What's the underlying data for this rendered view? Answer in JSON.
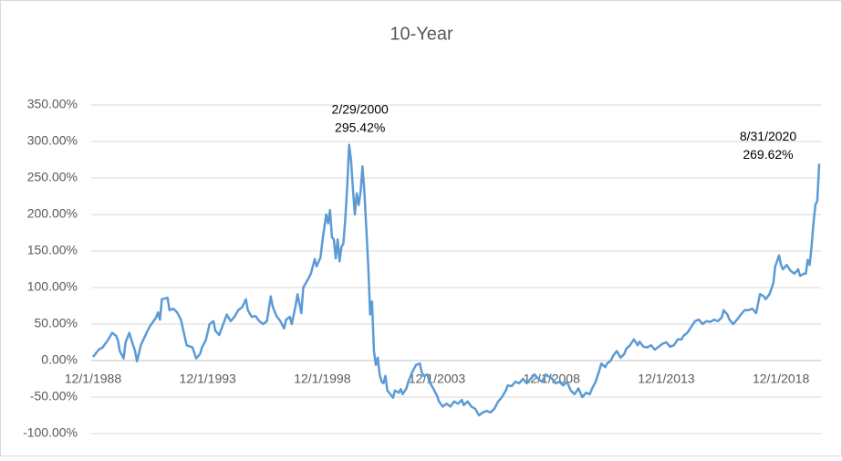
{
  "chart_data": {
    "type": "line",
    "title": "10-Year",
    "color": "#5b9bd5",
    "grid": true,
    "xlim": [
      "12/1/1988",
      "8/31/2020"
    ],
    "xticks": [
      "12/1/1988",
      "12/1/1993",
      "12/1/1998",
      "12/1/2003",
      "12/1/2008",
      "12/1/2013",
      "12/1/2018"
    ],
    "ylim": [
      -100,
      350
    ],
    "yticks": [
      {
        "value": -100,
        "label": "-100.00%"
      },
      {
        "value": -50,
        "label": "-50.00%"
      },
      {
        "value": 0,
        "label": "0.00%"
      },
      {
        "value": 50,
        "label": "50.00%"
      },
      {
        "value": 100,
        "label": "100.00%"
      },
      {
        "value": 150,
        "label": "150.00%"
      },
      {
        "value": 200,
        "label": "200.00%"
      },
      {
        "value": 250,
        "label": "250.00%"
      },
      {
        "value": 300,
        "label": "300.00%"
      },
      {
        "value": 350,
        "label": "350.00%"
      }
    ],
    "annotations": [
      {
        "x": "2/29/2000",
        "value": 295.42,
        "label": "295.42%"
      },
      {
        "x": "8/31/2020",
        "value": 269.62,
        "label": "269.62%"
      }
    ],
    "x": [
      "12/1/1988",
      "3/1/1989",
      "5/1/1989",
      "8/1/1989",
      "10/1/1989",
      "12/1/1989",
      "1/1/1990",
      "2/1/1990",
      "4/1/1990",
      "5/1/1990",
      "7/1/1990",
      "8/1/1990",
      "10/1/1990",
      "11/1/1990",
      "1/1/1991",
      "4/1/1991",
      "6/1/1991",
      "9/1/1991",
      "10/1/1991",
      "11/1/1991",
      "12/1/1991",
      "3/1/1992",
      "4/1/1992",
      "6/1/1992",
      "8/1/1992",
      "10/1/1992",
      "11/1/1992",
      "1/1/1993",
      "4/1/1993",
      "6/1/1993",
      "8/1/1993",
      "9/1/1993",
      "11/1/1993",
      "1/1/1994",
      "3/1/1994",
      "4/1/1994",
      "6/1/1994",
      "8/1/1994",
      "10/1/1994",
      "12/1/1994",
      "2/1/1995",
      "4/1/1995",
      "6/1/1995",
      "8/1/1995",
      "9/1/1995",
      "11/1/1995",
      "1/1/1996",
      "3/1/1996",
      "5/1/1996",
      "7/1/1996",
      "9/1/1996",
      "10/1/1996",
      "12/1/1996",
      "2/1/1997",
      "4/1/1997",
      "5/1/1997",
      "7/1/1997",
      "8/1/1997",
      "10/1/1997",
      "11/1/1997",
      "1/1/1998",
      "2/1/1998",
      "4/1/1998",
      "6/1/1998",
      "8/1/1998",
      "9/1/1998",
      "11/1/1998",
      "12/1/1998",
      "2/1/1999",
      "3/1/1999",
      "4/1/1999",
      "5/1/1999",
      "6/1/1999",
      "7/1/1999",
      "8/1/1999",
      "9/1/1999",
      "10/1/1999",
      "11/1/1999",
      "12/1/1999",
      "1/1/2000",
      "2/29/2000",
      "3/1/2000",
      "4/1/2000",
      "5/1/2000",
      "6/1/2000",
      "7/1/2000",
      "8/1/2000",
      "9/1/2000",
      "10/1/2000",
      "11/1/2000",
      "12/1/2000",
      "1/1/2001",
      "2/1/2001",
      "3/1/2001",
      "4/1/2001",
      "5/1/2001",
      "6/1/2001",
      "7/1/2001",
      "8/1/2001",
      "9/1/2001",
      "10/1/2001",
      "11/1/2001",
      "1/1/2002",
      "2/1/2002",
      "4/1/2002",
      "5/1/2002",
      "6/1/2002",
      "8/1/2002",
      "9/1/2002",
      "11/1/2002",
      "1/1/2003",
      "3/1/2003",
      "4/1/2003",
      "5/1/2003",
      "7/1/2003",
      "8/1/2003",
      "10/1/2003",
      "12/1/2003",
      "1/1/2004",
      "3/1/2004",
      "5/1/2004",
      "7/1/2004",
      "9/1/2004",
      "11/1/2004",
      "1/1/2005",
      "2/1/2005",
      "4/1/2005",
      "6/1/2005",
      "8/1/2005",
      "10/1/2005",
      "12/1/2005",
      "2/1/2006",
      "4/1/2006",
      "6/1/2006",
      "8/1/2006",
      "10/1/2006",
      "12/1/2006",
      "1/1/2007",
      "3/1/2007",
      "5/1/2007",
      "7/1/2007",
      "9/1/2007",
      "11/1/2007",
      "1/1/2008",
      "3/1/2008",
      "5/1/2008",
      "7/1/2008",
      "9/1/2008",
      "10/1/2008",
      "12/1/2008",
      "2/1/2009",
      "4/1/2009",
      "6/1/2009",
      "8/1/2009",
      "10/1/2009",
      "12/1/2009",
      "2/1/2010",
      "4/1/2010",
      "6/1/2010",
      "8/1/2010",
      "9/1/2010",
      "11/1/2010",
      "1/1/2011",
      "2/1/2011",
      "4/1/2011",
      "5/1/2011",
      "7/1/2011",
      "8/1/2011",
      "10/1/2011",
      "11/1/2011",
      "12/1/2011",
      "2/1/2012",
      "3/1/2012",
      "5/1/2012",
      "7/1/2012",
      "9/1/2012",
      "10/1/2012",
      "12/1/2012",
      "2/1/2013",
      "4/1/2013",
      "6/1/2013",
      "8/1/2013",
      "10/1/2013",
      "12/1/2013",
      "2/1/2014",
      "4/1/2014",
      "6/1/2014",
      "8/1/2014",
      "9/1/2014",
      "11/1/2014",
      "1/1/2015",
      "3/1/2015",
      "5/1/2015",
      "7/1/2015",
      "9/1/2015",
      "11/1/2015",
      "1/1/2016",
      "3/1/2016",
      "5/1/2016",
      "6/1/2016",
      "8/1/2016",
      "9/1/2016",
      "11/1/2016",
      "1/1/2017",
      "3/1/2017",
      "5/1/2017",
      "7/1/2017",
      "9/1/2017",
      "11/1/2017",
      "1/1/2018",
      "3/1/2018",
      "4/1/2018",
      "6/1/2018",
      "8/1/2018",
      "9/1/2018",
      "11/1/2018",
      "12/1/2018",
      "1/1/2019",
      "3/1/2019",
      "5/1/2019",
      "7/1/2019",
      "9/1/2019",
      "10/1/2019",
      "12/1/2019",
      "1/1/2020",
      "2/1/2020",
      "3/1/2020",
      "4/1/2020",
      "5/1/2020",
      "6/1/2020",
      "7/1/2020",
      "8/31/2020"
    ],
    "values": [
      5,
      15,
      18,
      29,
      38,
      34,
      28,
      13,
      3,
      25,
      38,
      29,
      13,
      -1,
      21,
      38,
      48,
      59,
      66,
      56,
      84,
      86,
      69,
      71,
      66,
      56,
      44,
      21,
      18,
      3,
      9,
      18,
      28,
      50,
      54,
      41,
      35,
      49,
      63,
      54,
      60,
      69,
      73,
      84,
      69,
      60,
      61,
      54,
      50,
      54,
      88,
      74,
      61,
      54,
      44,
      56,
      60,
      50,
      75,
      91,
      65,
      100,
      109,
      119,
      139,
      129,
      141,
      163,
      200,
      188,
      206,
      169,
      166,
      140,
      166,
      136,
      156,
      160,
      194,
      238,
      295.42,
      275,
      235,
      200,
      229,
      213,
      231,
      266,
      231,
      181,
      131,
      63,
      81,
      13,
      -6,
      4,
      -19,
      -29,
      -31,
      -21,
      -41,
      -44,
      -51,
      -41,
      -44,
      -39,
      -46,
      -38,
      -29,
      -16,
      -6,
      -4,
      -16,
      -21,
      -19,
      -29,
      -38,
      -48,
      -56,
      -63,
      -59,
      -63,
      -56,
      -59,
      -54,
      -61,
      -56,
      -63,
      -66,
      -75,
      -71,
      -69,
      -71,
      -66,
      -56,
      -50,
      -41,
      -34,
      -35,
      -29,
      -31,
      -25,
      -31,
      -25,
      -19,
      -25,
      -29,
      -19,
      -21,
      -24,
      -31,
      -29,
      -34,
      -29,
      -41,
      -46,
      -38,
      -50,
      -44,
      -46,
      -39,
      -29,
      -13,
      -4,
      -9,
      -4,
      0,
      6,
      13,
      9,
      4,
      9,
      16,
      21,
      29,
      21,
      26,
      19,
      18,
      21,
      15,
      19,
      23,
      25,
      19,
      21,
      29,
      29,
      34,
      38,
      46,
      54,
      56,
      50,
      54,
      53,
      56,
      54,
      59,
      69,
      63,
      56,
      50,
      56,
      63,
      69,
      69,
      71,
      65,
      91,
      88,
      84,
      91,
      106,
      129,
      144,
      131,
      125,
      131,
      123,
      119,
      125,
      116,
      119,
      119,
      138,
      131,
      156,
      188,
      213,
      219,
      269.62
    ]
  }
}
